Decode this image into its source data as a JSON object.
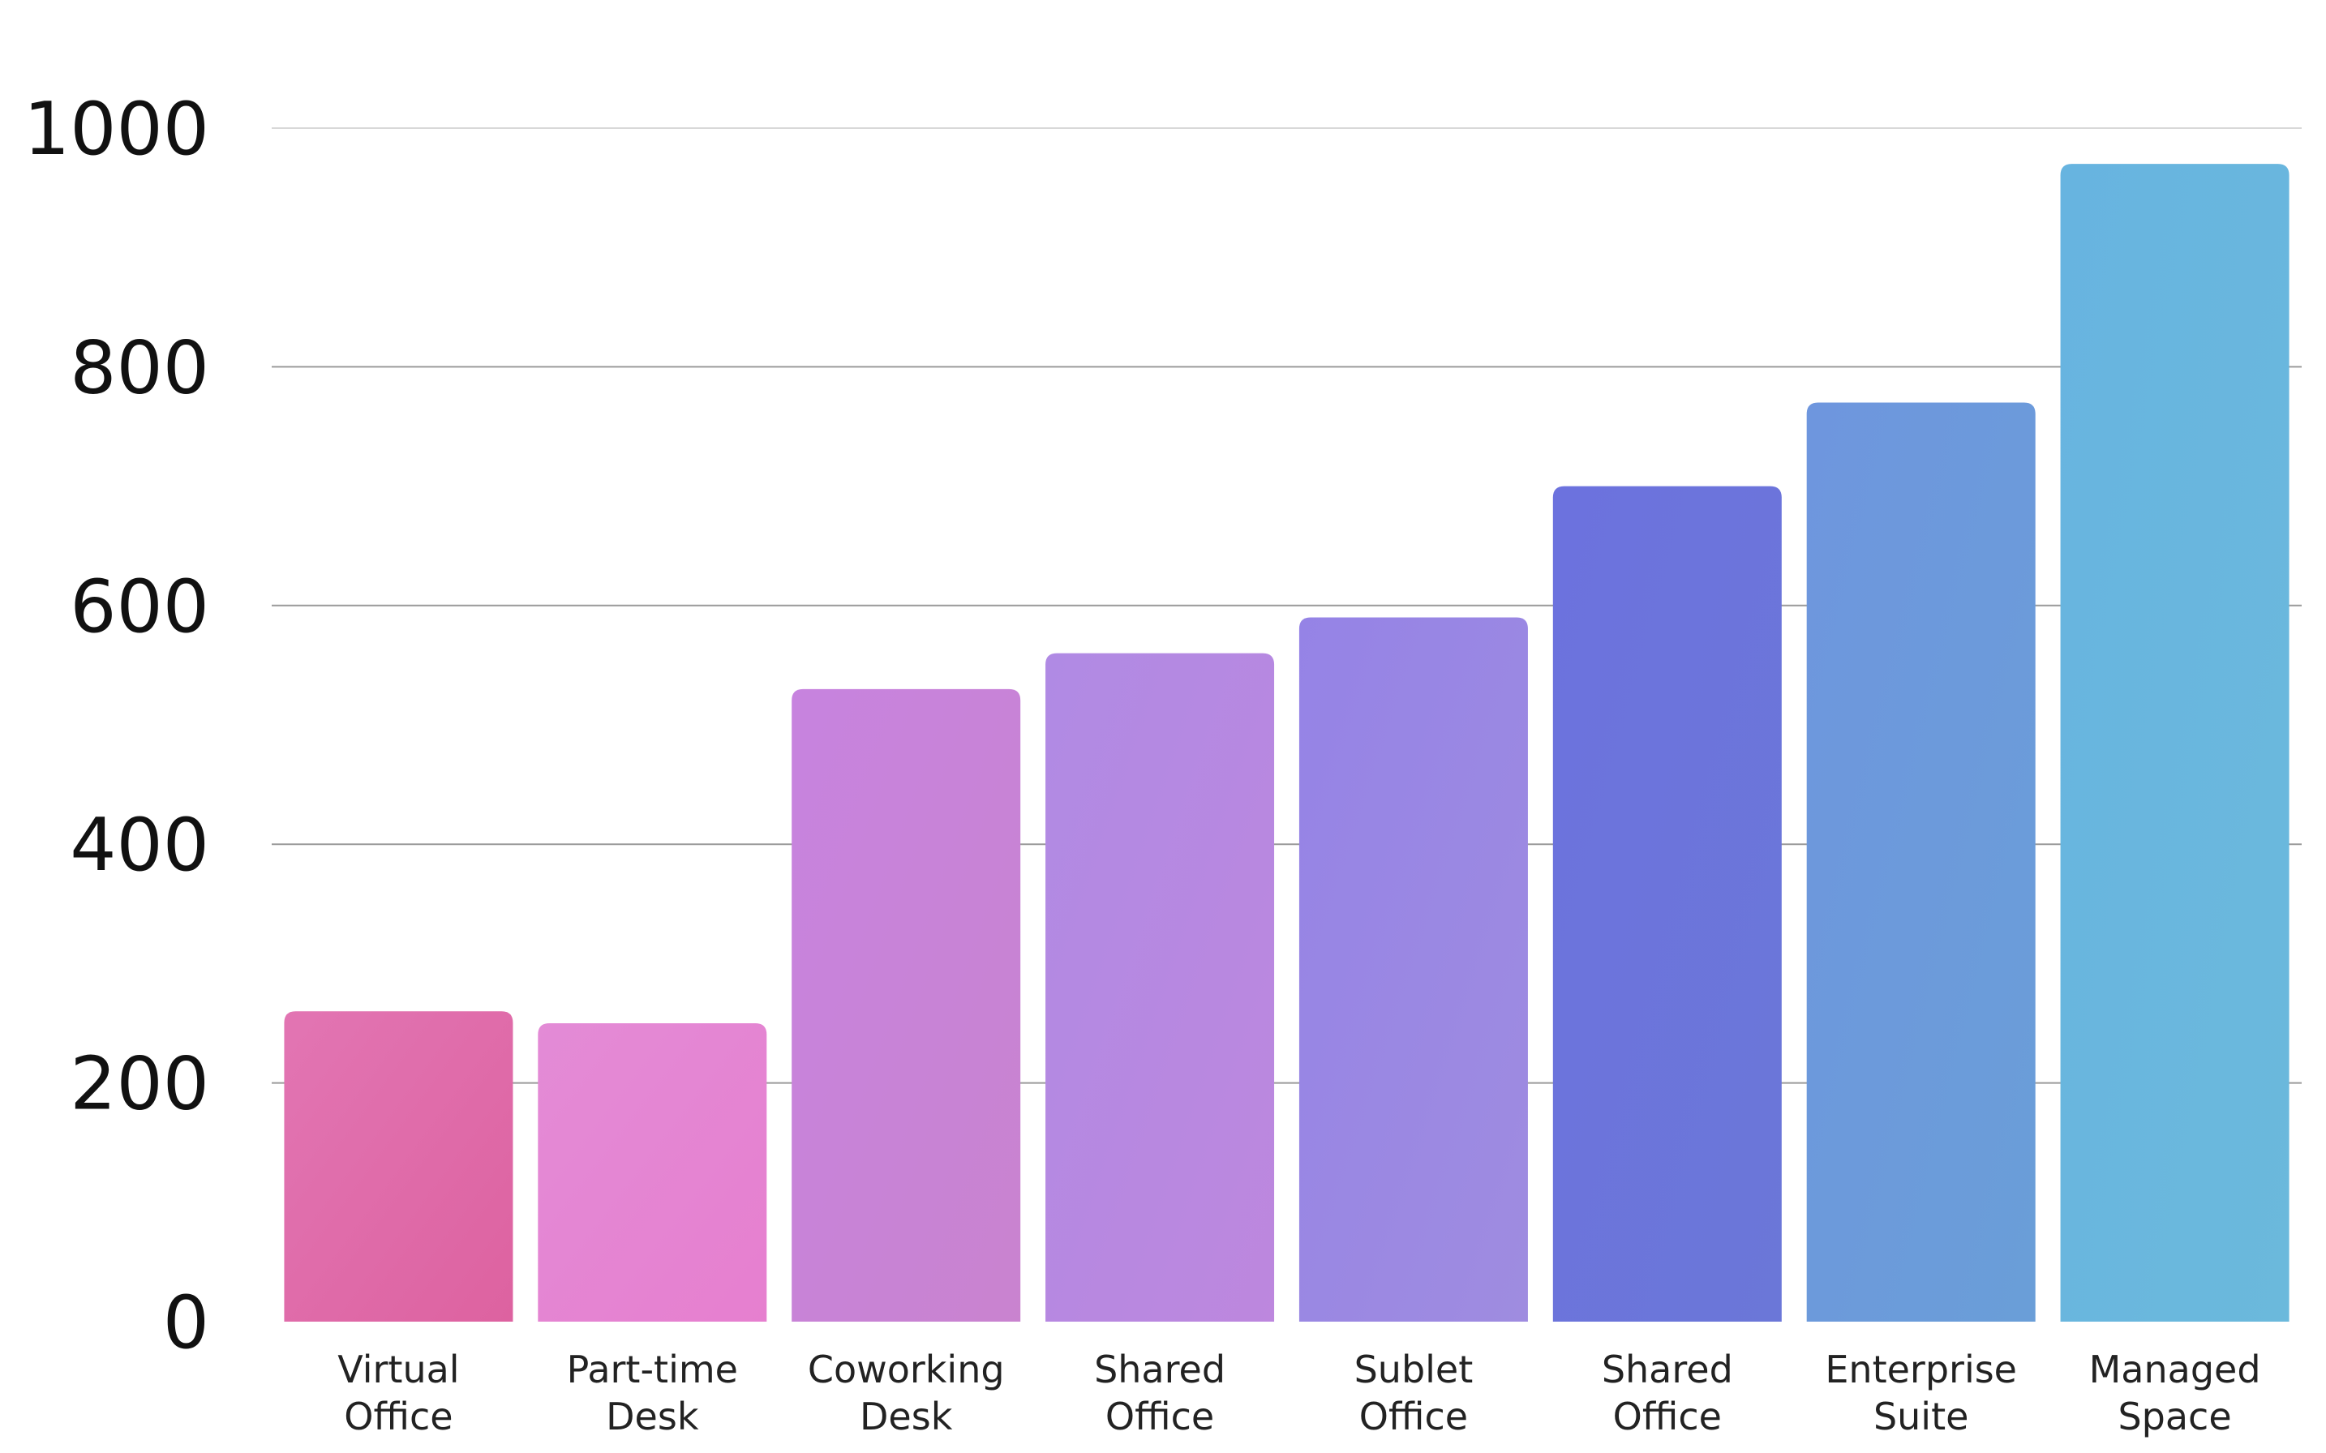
{
  "chart_data": {
    "type": "bar",
    "title": "",
    "xlabel": "",
    "ylabel": "",
    "ylim": [
      0,
      1000
    ],
    "yticks": [
      "0",
      "200",
      "400",
      "600",
      "800",
      "1000"
    ],
    "grid": true,
    "legend": "none",
    "categories": [
      [
        "Virtual",
        "Office"
      ],
      [
        "Part-time",
        "Desk"
      ],
      [
        "Coworking",
        "Desk"
      ],
      [
        "Shared",
        "Office"
      ],
      [
        "Sublet",
        "Office"
      ],
      [
        "Shared",
        "Office"
      ],
      [
        "Enterprise",
        "Suite"
      ],
      [
        "Managed",
        "Space"
      ]
    ],
    "values": [
      260,
      250,
      530,
      560,
      590,
      700,
      770,
      970
    ],
    "colors": [
      [
        "#e275b3",
        "#dd62a0"
      ],
      [
        "#e38bd6",
        "#e67fcf"
      ],
      [
        "#c783df",
        "#c983cf"
      ],
      [
        "#b08ae4",
        "#bd87de"
      ],
      [
        "#9583e6",
        "#9f8ce0"
      ],
      [
        "#6c72de",
        "#6b77d8"
      ],
      [
        "#6e96de",
        "#6a9ed8"
      ],
      [
        "#67b4e0",
        "#6bb9dc"
      ]
    ]
  }
}
